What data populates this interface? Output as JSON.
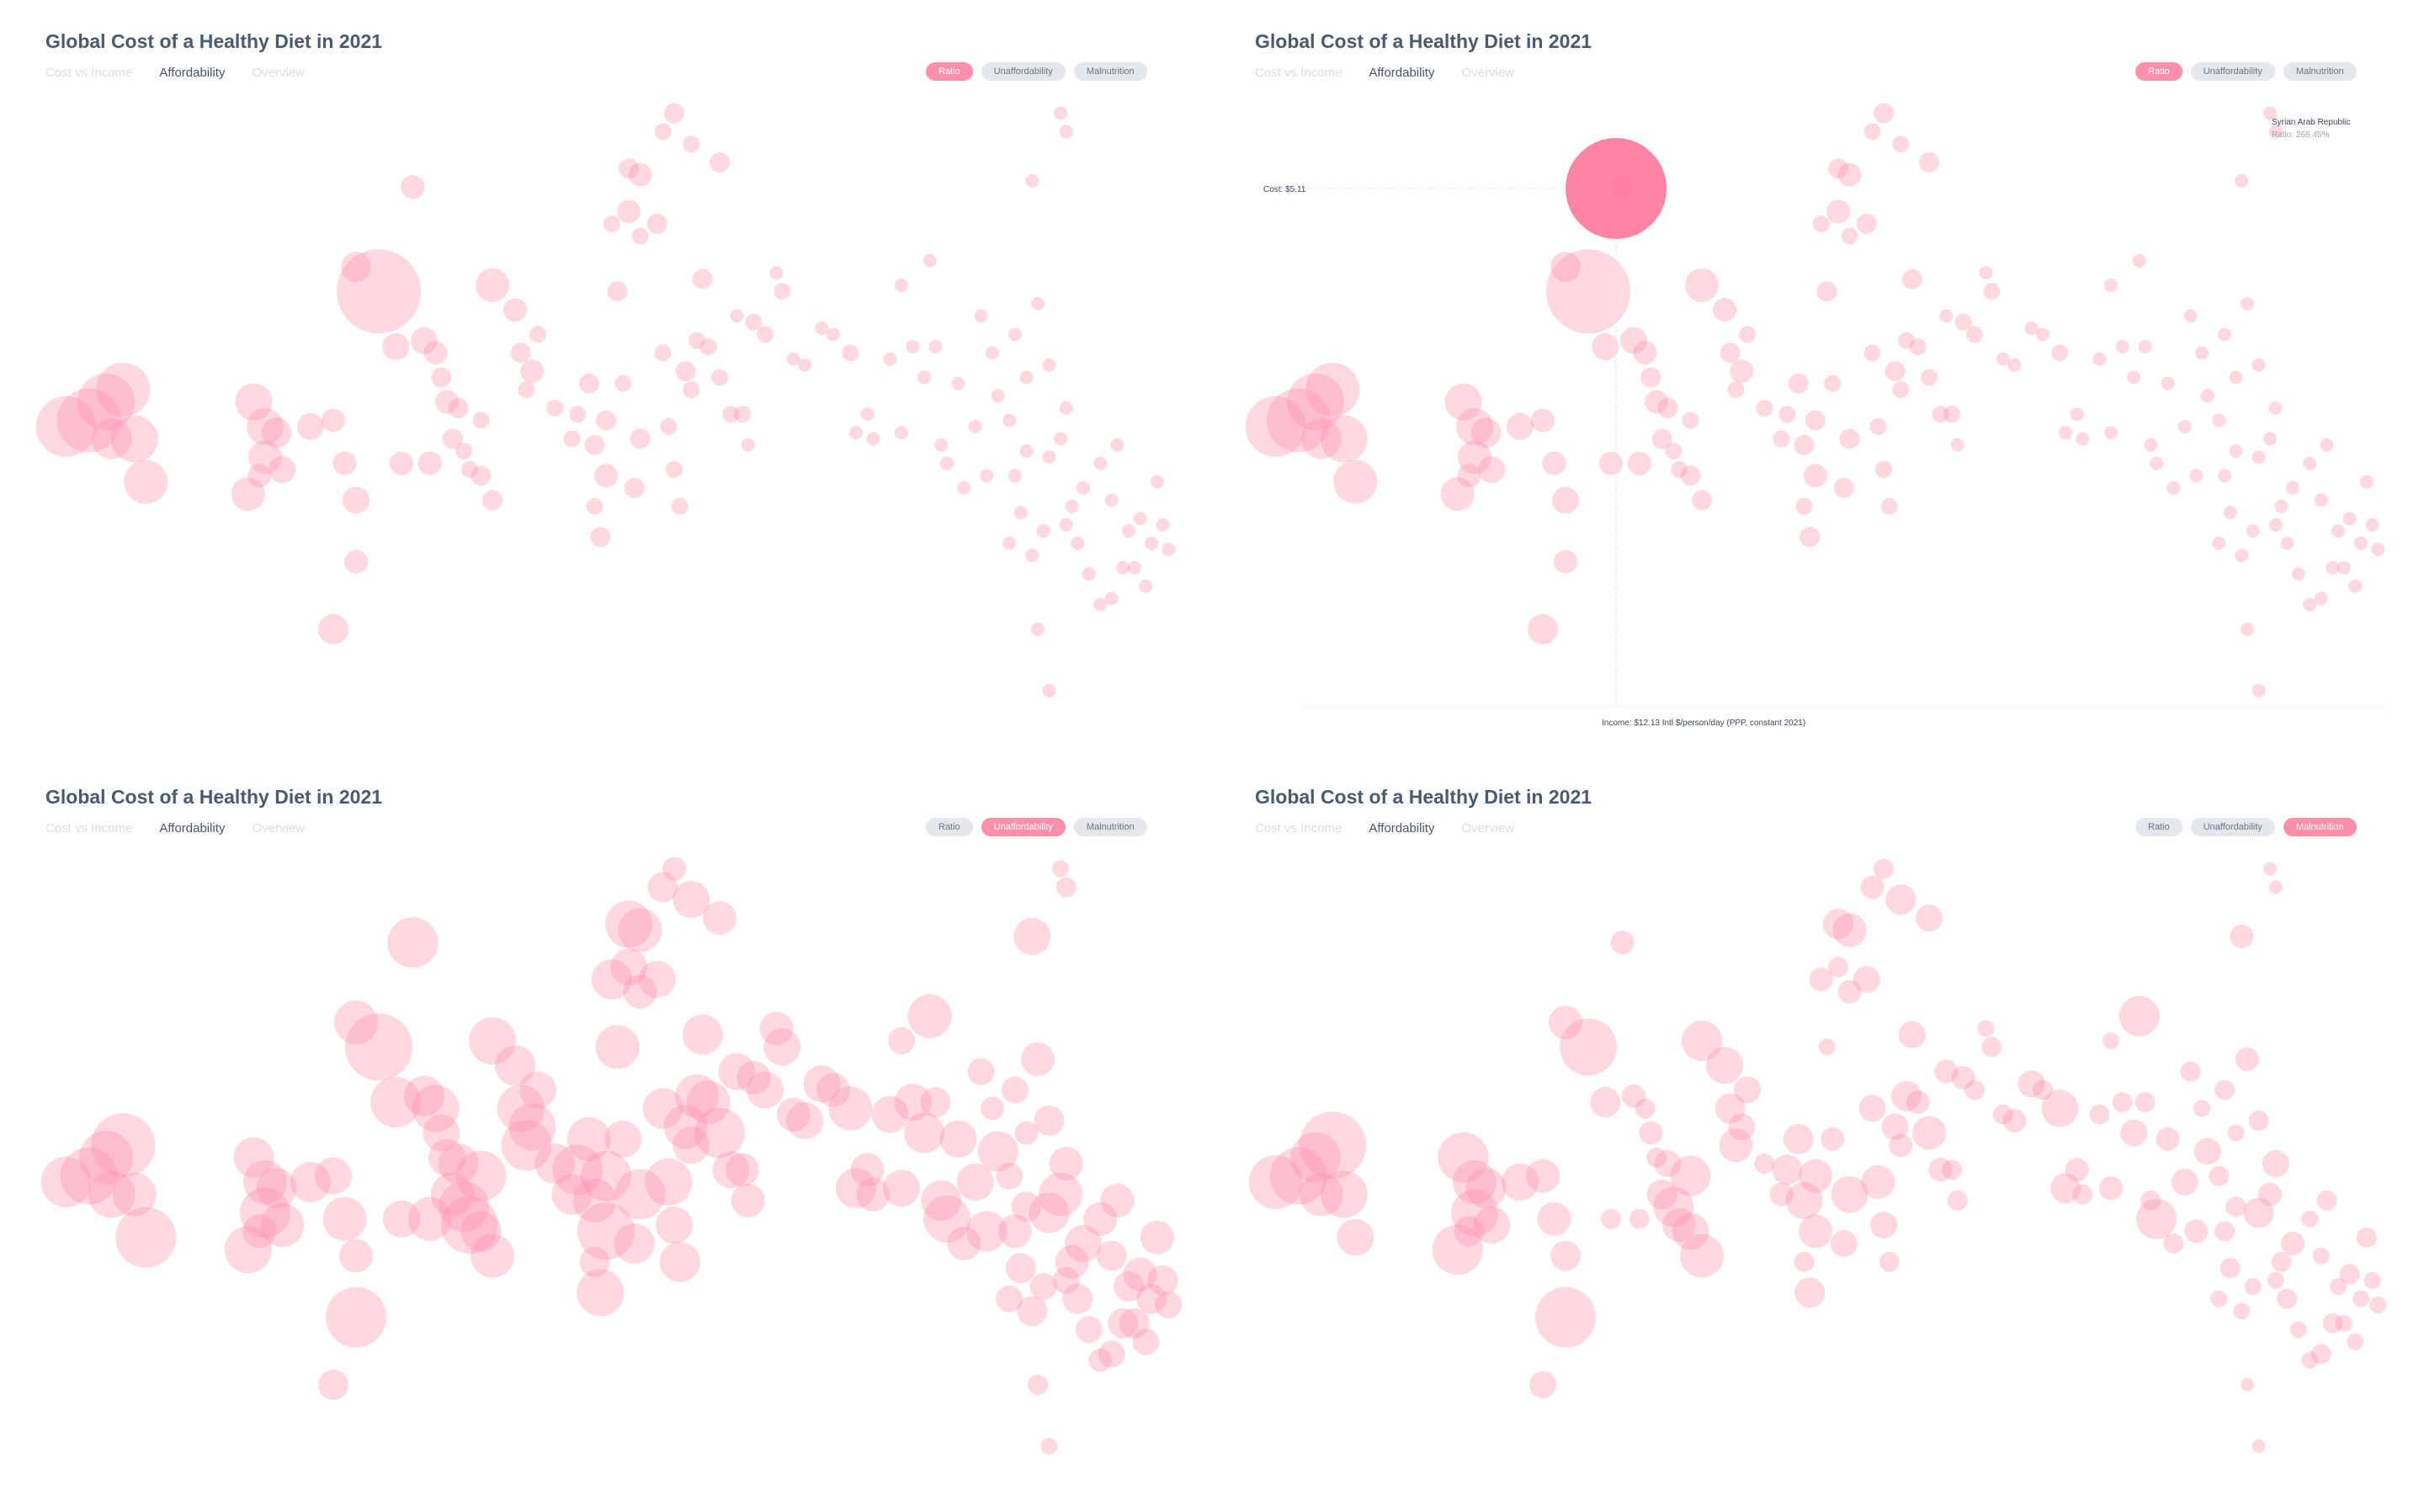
{
  "title": "Global Cost of a Healthy Diet in 2021",
  "nav": [
    "Cost vs Income",
    "Affordability",
    "Overview"
  ],
  "pills": [
    "Ratio",
    "Unaffordability",
    "Malnutrition"
  ],
  "colors": {
    "bubble": "#ff8fab",
    "bubble_hover": "#ff6f96",
    "pill_active": "#ff8fab",
    "pill": "#e4e7eb"
  },
  "panels": [
    {
      "id": "p1",
      "active_nav": 1,
      "active_pill": 0
    },
    {
      "id": "p2",
      "active_nav": 1,
      "active_pill": 0,
      "hover": {
        "cost_label": "Cost: $5.11",
        "income_label": "Income: $12.13 Intl $/person/day (PPP, constant 2021)",
        "tooltip_title": "Syrian Arab Republic",
        "tooltip_value": "Ratio: 266.45%"
      }
    },
    {
      "id": "p3",
      "active_nav": 1,
      "active_pill": 1
    },
    {
      "id": "p4",
      "active_nav": 1,
      "active_pill": 2
    }
  ],
  "chart_data": {
    "type": "scatter",
    "title": "Global Cost of a Healthy Diet in 2021",
    "xlabel": "",
    "ylabel": "",
    "size_modes": [
      "Ratio",
      "Unaffordability",
      "Malnutrition"
    ],
    "points": [
      [
        0.025,
        0.53,
        36,
        30,
        32
      ],
      [
        0.045,
        0.52,
        38,
        34,
        34
      ],
      [
        0.06,
        0.49,
        34,
        32,
        30
      ],
      [
        0.075,
        0.47,
        32,
        38,
        40
      ],
      [
        0.085,
        0.55,
        28,
        26,
        28
      ],
      [
        0.095,
        0.62,
        26,
        36,
        22
      ],
      [
        0.065,
        0.55,
        24,
        28,
        26
      ],
      [
        0.19,
        0.49,
        22,
        24,
        30
      ],
      [
        0.2,
        0.53,
        22,
        26,
        26
      ],
      [
        0.2,
        0.58,
        20,
        30,
        28
      ],
      [
        0.185,
        0.64,
        20,
        28,
        30
      ],
      [
        0.21,
        0.54,
        18,
        24,
        24
      ],
      [
        0.215,
        0.6,
        16,
        26,
        22
      ],
      [
        0.195,
        0.61,
        14,
        20,
        18
      ],
      [
        0.24,
        0.53,
        16,
        24,
        22
      ],
      [
        0.26,
        0.52,
        14,
        22,
        20
      ],
      [
        0.27,
        0.59,
        14,
        26,
        20
      ],
      [
        0.28,
        0.65,
        16,
        20,
        18
      ],
      [
        0.28,
        0.75,
        14,
        36,
        36
      ],
      [
        0.26,
        0.86,
        18,
        18,
        16
      ],
      [
        0.28,
        0.27,
        18,
        26,
        20
      ],
      [
        0.3,
        0.31,
        50,
        40,
        34
      ],
      [
        0.315,
        0.4,
        16,
        30,
        18
      ],
      [
        0.32,
        0.59,
        14,
        22,
        12
      ],
      [
        0.34,
        0.39,
        16,
        24,
        14
      ],
      [
        0.35,
        0.41,
        14,
        28,
        12
      ],
      [
        0.345,
        0.59,
        14,
        26,
        12
      ],
      [
        0.355,
        0.45,
        12,
        22,
        14
      ],
      [
        0.36,
        0.49,
        14,
        22,
        12
      ],
      [
        0.37,
        0.5,
        12,
        24,
        16
      ],
      [
        0.365,
        0.55,
        12,
        26,
        18
      ],
      [
        0.375,
        0.57,
        10,
        30,
        24
      ],
      [
        0.38,
        0.6,
        10,
        34,
        20
      ],
      [
        0.39,
        0.61,
        12,
        24,
        22
      ],
      [
        0.39,
        0.52,
        10,
        30,
        24
      ],
      [
        0.4,
        0.65,
        12,
        26,
        26
      ],
      [
        0.4,
        0.3,
        20,
        28,
        24
      ],
      [
        0.42,
        0.34,
        14,
        24,
        22
      ],
      [
        0.425,
        0.41,
        12,
        28,
        18
      ],
      [
        0.435,
        0.44,
        14,
        28,
        16
      ],
      [
        0.43,
        0.47,
        10,
        30,
        20
      ],
      [
        0.44,
        0.38,
        10,
        22,
        16
      ],
      [
        0.455,
        0.5,
        10,
        24,
        12
      ],
      [
        0.47,
        0.55,
        10,
        24,
        14
      ],
      [
        0.475,
        0.51,
        10,
        30,
        18
      ],
      [
        0.49,
        0.56,
        12,
        26,
        22
      ],
      [
        0.5,
        0.61,
        14,
        34,
        20
      ],
      [
        0.49,
        0.66,
        10,
        18,
        12
      ],
      [
        0.495,
        0.71,
        12,
        28,
        18
      ],
      [
        0.5,
        0.52,
        12,
        30,
        20
      ],
      [
        0.485,
        0.46,
        12,
        26,
        18
      ],
      [
        0.515,
        0.46,
        10,
        22,
        14
      ],
      [
        0.53,
        0.55,
        12,
        30,
        22
      ],
      [
        0.525,
        0.63,
        12,
        24,
        16
      ],
      [
        0.505,
        0.2,
        10,
        24,
        14
      ],
      [
        0.51,
        0.31,
        12,
        26,
        10
      ],
      [
        0.52,
        0.18,
        14,
        22,
        12
      ],
      [
        0.53,
        0.22,
        10,
        20,
        14
      ],
      [
        0.545,
        0.2,
        12,
        22,
        16
      ],
      [
        0.55,
        0.41,
        10,
        24,
        16
      ],
      [
        0.555,
        0.53,
        10,
        28,
        20
      ],
      [
        0.56,
        0.6,
        10,
        22,
        16
      ],
      [
        0.565,
        0.66,
        10,
        24,
        12
      ],
      [
        0.57,
        0.44,
        12,
        26,
        16
      ],
      [
        0.575,
        0.47,
        10,
        22,
        14
      ],
      [
        0.58,
        0.39,
        10,
        26,
        18
      ],
      [
        0.585,
        0.29,
        12,
        24,
        16
      ],
      [
        0.59,
        0.4,
        10,
        26,
        14
      ],
      [
        0.6,
        0.45,
        10,
        30,
        20
      ],
      [
        0.61,
        0.51,
        10,
        22,
        14
      ],
      [
        0.62,
        0.51,
        10,
        20,
        12
      ],
      [
        0.615,
        0.35,
        8,
        22,
        14
      ],
      [
        0.625,
        0.56,
        8,
        20,
        12
      ],
      [
        0.63,
        0.36,
        10,
        20,
        14
      ],
      [
        0.64,
        0.38,
        10,
        22,
        12
      ],
      [
        0.65,
        0.28,
        8,
        20,
        10
      ],
      [
        0.655,
        0.31,
        10,
        22,
        12
      ],
      [
        0.665,
        0.42,
        8,
        20,
        12
      ],
      [
        0.675,
        0.43,
        8,
        22,
        14
      ],
      [
        0.69,
        0.37,
        8,
        22,
        16
      ],
      [
        0.7,
        0.38,
        8,
        20,
        12
      ],
      [
        0.715,
        0.41,
        10,
        26,
        22
      ],
      [
        0.72,
        0.54,
        8,
        24,
        18
      ],
      [
        0.73,
        0.51,
        8,
        20,
        14
      ],
      [
        0.735,
        0.55,
        8,
        20,
        12
      ],
      [
        0.75,
        0.42,
        8,
        22,
        12
      ],
      [
        0.76,
        0.3,
        8,
        16,
        10
      ],
      [
        0.76,
        0.54,
        8,
        22,
        14
      ],
      [
        0.77,
        0.4,
        8,
        22,
        12
      ],
      [
        0.78,
        0.45,
        8,
        24,
        16
      ],
      [
        0.785,
        0.26,
        8,
        26,
        24
      ],
      [
        0.79,
        0.4,
        8,
        18,
        12
      ],
      [
        0.795,
        0.56,
        8,
        24,
        12
      ],
      [
        0.8,
        0.59,
        8,
        28,
        24
      ],
      [
        0.81,
        0.46,
        8,
        22,
        14
      ],
      [
        0.815,
        0.63,
        8,
        20,
        12
      ],
      [
        0.825,
        0.53,
        8,
        22,
        16
      ],
      [
        0.835,
        0.61,
        8,
        24,
        14
      ],
      [
        0.845,
        0.48,
        8,
        24,
        16
      ],
      [
        0.855,
        0.52,
        8,
        16,
        12
      ],
      [
        0.86,
        0.61,
        8,
        20,
        12
      ],
      [
        0.87,
        0.57,
        8,
        18,
        12
      ],
      [
        0.875,
        0.13,
        8,
        22,
        14
      ],
      [
        0.88,
        0.33,
        8,
        20,
        14
      ],
      [
        0.89,
        0.43,
        8,
        18,
        12
      ],
      [
        0.89,
        0.58,
        8,
        24,
        18
      ],
      [
        0.9,
        0.55,
        8,
        26,
        14
      ],
      [
        0.905,
        0.5,
        8,
        20,
        16
      ],
      [
        0.91,
        0.66,
        8,
        20,
        12
      ],
      [
        0.92,
        0.63,
        8,
        22,
        14
      ],
      [
        0.935,
        0.59,
        8,
        20,
        10
      ],
      [
        0.945,
        0.65,
        8,
        18,
        10
      ],
      [
        0.95,
        0.56,
        8,
        20,
        12
      ],
      [
        0.96,
        0.7,
        8,
        18,
        10
      ],
      [
        0.97,
        0.68,
        8,
        20,
        12
      ],
      [
        0.98,
        0.72,
        8,
        18,
        10
      ],
      [
        0.985,
        0.62,
        8,
        20,
        12
      ],
      [
        0.99,
        0.69,
        8,
        18,
        10
      ],
      [
        0.995,
        0.73,
        8,
        16,
        10
      ],
      [
        0.965,
        0.76,
        8,
        18,
        10
      ],
      [
        0.975,
        0.79,
        8,
        16,
        10
      ],
      [
        0.955,
        0.76,
        8,
        18,
        12
      ],
      [
        0.945,
        0.81,
        8,
        16,
        12
      ],
      [
        0.935,
        0.82,
        8,
        14,
        10
      ],
      [
        0.925,
        0.77,
        8,
        16,
        10
      ],
      [
        0.915,
        0.72,
        8,
        18,
        12
      ],
      [
        0.905,
        0.69,
        8,
        16,
        10
      ],
      [
        0.885,
        0.7,
        8,
        16,
        10
      ],
      [
        0.875,
        0.74,
        8,
        18,
        10
      ],
      [
        0.865,
        0.67,
        8,
        18,
        12
      ],
      [
        0.855,
        0.72,
        8,
        16,
        10
      ],
      [
        0.9,
        0.02,
        8,
        10,
        8
      ],
      [
        0.905,
        0.05,
        8,
        12,
        8
      ],
      [
        0.89,
        0.96,
        8,
        10,
        8
      ],
      [
        0.88,
        0.86,
        8,
        12,
        8
      ],
      [
        0.83,
        0.35,
        8,
        16,
        12
      ],
      [
        0.84,
        0.41,
        8,
        14,
        10
      ],
      [
        0.86,
        0.38,
        8,
        16,
        12
      ],
      [
        0.87,
        0.45,
        8,
        14,
        10
      ],
      [
        0.55,
        0.05,
        10,
        18,
        14
      ],
      [
        0.56,
        0.02,
        12,
        14,
        12
      ],
      [
        0.6,
        0.1,
        12,
        20,
        16
      ],
      [
        0.575,
        0.07,
        10,
        22,
        18
      ],
      [
        0.52,
        0.11,
        12,
        28,
        18
      ],
      [
        0.53,
        0.12,
        14,
        26,
        20
      ],
      [
        0.33,
        0.14,
        14,
        30,
        14
      ]
    ]
  }
}
